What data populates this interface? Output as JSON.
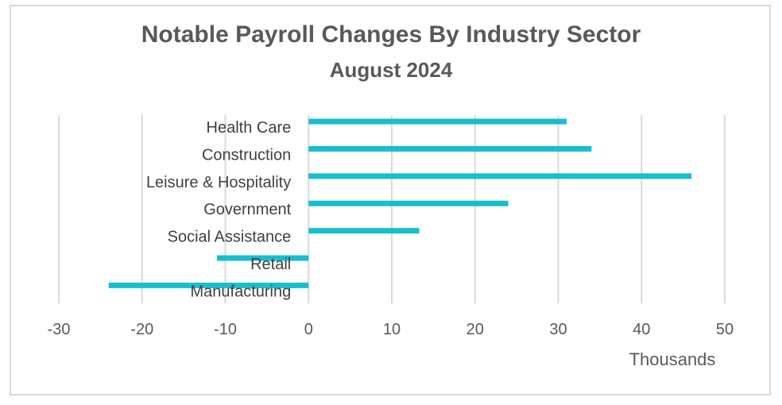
{
  "chart_data": {
    "type": "bar",
    "orientation": "horizontal",
    "title": "Notable Payroll Changes By Industry Sector",
    "subtitle": "August 2024",
    "categories": [
      "Health Care",
      "Construction",
      "Leisure & Hospitality",
      "Government",
      "Social Assistance",
      "Retail",
      "Manufacturing"
    ],
    "values": [
      31,
      34,
      46,
      24,
      13.3,
      -11,
      -24
    ],
    "xlabel": "Thousands",
    "ylabel": "",
    "xlim": [
      -30,
      50
    ],
    "xticks": [
      -30,
      -20,
      -10,
      0,
      10,
      20,
      30,
      40,
      50
    ],
    "grid": true,
    "legend": "none",
    "bar_color": "#17becf",
    "grid_color": "#d9d9d9"
  }
}
